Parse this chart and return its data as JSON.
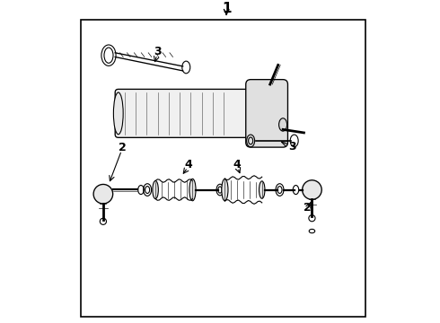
{
  "background_color": "#ffffff",
  "border_color": "#000000",
  "line_color": "#000000",
  "fig_width": 4.9,
  "fig_height": 3.6,
  "dpi": 100,
  "label_fontsize_small": 9,
  "label_fontsize_large": 11
}
